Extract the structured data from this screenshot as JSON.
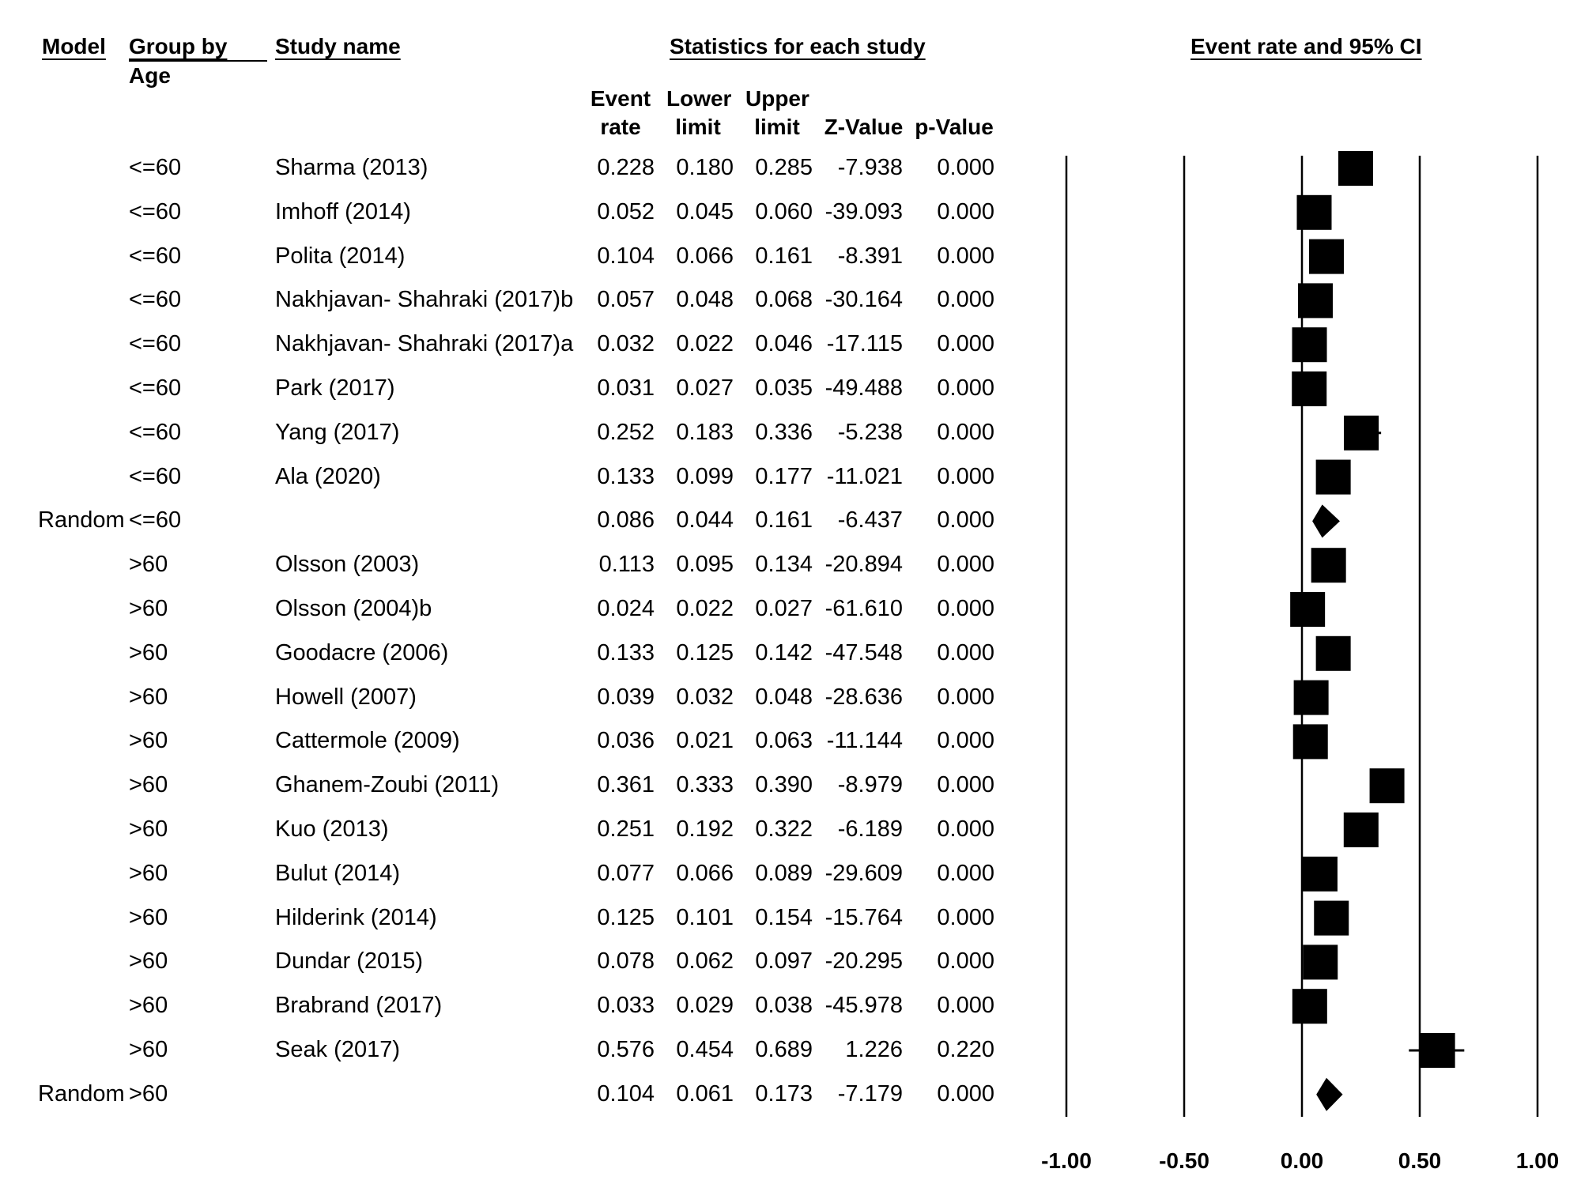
{
  "headers": {
    "model": "Model",
    "group_by_line1": "Group by",
    "group_by_line2": "Age",
    "study_name": "Study name",
    "statistics": "Statistics for each study",
    "event_rate_line1": "Event",
    "event_rate_line2": "rate",
    "lower_line1": "Lower",
    "lower_line2": "limit",
    "upper_line1": "Upper",
    "upper_line2": "limit",
    "z_value": "Z-Value",
    "p_value": "p-Value",
    "plot_title": "Event rate and 95% CI"
  },
  "rows": [
    {
      "model": "",
      "group": "<=60",
      "study": "Sharma (2013)",
      "er": "0.228",
      "ll": "0.180",
      "ul": "0.285",
      "z": "-7.938",
      "p": "0.000"
    },
    {
      "model": "",
      "group": "<=60",
      "study": "Imhoff (2014)",
      "er": "0.052",
      "ll": "0.045",
      "ul": "0.060",
      "z": "-39.093",
      "p": "0.000"
    },
    {
      "model": "",
      "group": "<=60",
      "study": "Polita (2014)",
      "er": "0.104",
      "ll": "0.066",
      "ul": "0.161",
      "z": "-8.391",
      "p": "0.000"
    },
    {
      "model": "",
      "group": "<=60",
      "study": "Nakhjavan- Shahraki (2017)b",
      "er": "0.057",
      "ll": "0.048",
      "ul": "0.068",
      "z": "-30.164",
      "p": "0.000"
    },
    {
      "model": "",
      "group": "<=60",
      "study": "Nakhjavan- Shahraki (2017)a",
      "er": "0.032",
      "ll": "0.022",
      "ul": "0.046",
      "z": "-17.115",
      "p": "0.000"
    },
    {
      "model": "",
      "group": "<=60",
      "study": "Park (2017)",
      "er": "0.031",
      "ll": "0.027",
      "ul": "0.035",
      "z": "-49.488",
      "p": "0.000"
    },
    {
      "model": "",
      "group": "<=60",
      "study": "Yang (2017)",
      "er": "0.252",
      "ll": "0.183",
      "ul": "0.336",
      "z": "-5.238",
      "p": "0.000"
    },
    {
      "model": "",
      "group": "<=60",
      "study": "Ala (2020)",
      "er": "0.133",
      "ll": "0.099",
      "ul": "0.177",
      "z": "-11.021",
      "p": "0.000"
    },
    {
      "model": "Random",
      "group": "<=60",
      "study": "",
      "er": "0.086",
      "ll": "0.044",
      "ul": "0.161",
      "z": "-6.437",
      "p": "0.000"
    },
    {
      "model": "",
      "group": ">60",
      "study": "Olsson (2003)",
      "er": "0.113",
      "ll": "0.095",
      "ul": "0.134",
      "z": "-20.894",
      "p": "0.000"
    },
    {
      "model": "",
      "group": ">60",
      "study": "Olsson (2004)b",
      "er": "0.024",
      "ll": "0.022",
      "ul": "0.027",
      "z": "-61.610",
      "p": "0.000"
    },
    {
      "model": "",
      "group": ">60",
      "study": "Goodacre (2006)",
      "er": "0.133",
      "ll": "0.125",
      "ul": "0.142",
      "z": "-47.548",
      "p": "0.000"
    },
    {
      "model": "",
      "group": ">60",
      "study": "Howell (2007)",
      "er": "0.039",
      "ll": "0.032",
      "ul": "0.048",
      "z": "-28.636",
      "p": "0.000"
    },
    {
      "model": "",
      "group": ">60",
      "study": "Cattermole (2009)",
      "er": "0.036",
      "ll": "0.021",
      "ul": "0.063",
      "z": "-11.144",
      "p": "0.000"
    },
    {
      "model": "",
      "group": ">60",
      "study": "Ghanem-Zoubi (2011)",
      "er": "0.361",
      "ll": "0.333",
      "ul": "0.390",
      "z": "-8.979",
      "p": "0.000"
    },
    {
      "model": "",
      "group": ">60",
      "study": "Kuo (2013)",
      "er": "0.251",
      "ll": "0.192",
      "ul": "0.322",
      "z": "-6.189",
      "p": "0.000"
    },
    {
      "model": "",
      "group": ">60",
      "study": "Bulut (2014)",
      "er": "0.077",
      "ll": "0.066",
      "ul": "0.089",
      "z": "-29.609",
      "p": "0.000"
    },
    {
      "model": "",
      "group": ">60",
      "study": "Hilderink (2014)",
      "er": "0.125",
      "ll": "0.101",
      "ul": "0.154",
      "z": "-15.764",
      "p": "0.000"
    },
    {
      "model": "",
      "group": ">60",
      "study": "Dundar (2015)",
      "er": "0.078",
      "ll": "0.062",
      "ul": "0.097",
      "z": "-20.295",
      "p": "0.000"
    },
    {
      "model": "",
      "group": ">60",
      "study": "Brabrand (2017)",
      "er": "0.033",
      "ll": "0.029",
      "ul": "0.038",
      "z": "-45.978",
      "p": "0.000"
    },
    {
      "model": "",
      "group": ">60",
      "study": "Seak (2017)",
      "er": "0.576",
      "ll": "0.454",
      "ul": "0.689",
      "z": "1.226",
      "p": "0.220"
    },
    {
      "model": "Random",
      "group": ">60",
      "study": "",
      "er": "0.104",
      "ll": "0.061",
      "ul": "0.173",
      "z": "-7.179",
      "p": "0.000"
    }
  ],
  "chart_data": {
    "type": "forest",
    "title": "Event rate and 95% CI",
    "x_ticks": [
      "-1.00",
      "-0.50",
      "0.00",
      "0.50",
      "1.00"
    ],
    "xlim": [
      -1,
      1
    ],
    "series": [
      {
        "label": "Sharma (2013)",
        "est": 0.228,
        "lo": 0.18,
        "hi": 0.285,
        "kind": "study"
      },
      {
        "label": "Imhoff (2014)",
        "est": 0.052,
        "lo": 0.045,
        "hi": 0.06,
        "kind": "study"
      },
      {
        "label": "Polita (2014)",
        "est": 0.104,
        "lo": 0.066,
        "hi": 0.161,
        "kind": "study"
      },
      {
        "label": "Nakhjavan- Shahraki (2017)b",
        "est": 0.057,
        "lo": 0.048,
        "hi": 0.068,
        "kind": "study"
      },
      {
        "label": "Nakhjavan- Shahraki (2017)a",
        "est": 0.032,
        "lo": 0.022,
        "hi": 0.046,
        "kind": "study"
      },
      {
        "label": "Park (2017)",
        "est": 0.031,
        "lo": 0.027,
        "hi": 0.035,
        "kind": "study"
      },
      {
        "label": "Yang (2017)",
        "est": 0.252,
        "lo": 0.183,
        "hi": 0.336,
        "kind": "study"
      },
      {
        "label": "Ala (2020)",
        "est": 0.133,
        "lo": 0.099,
        "hi": 0.177,
        "kind": "study"
      },
      {
        "label": "Random <=60",
        "est": 0.086,
        "lo": 0.044,
        "hi": 0.161,
        "kind": "summary"
      },
      {
        "label": "Olsson (2003)",
        "est": 0.113,
        "lo": 0.095,
        "hi": 0.134,
        "kind": "study"
      },
      {
        "label": "Olsson (2004)b",
        "est": 0.024,
        "lo": 0.022,
        "hi": 0.027,
        "kind": "study"
      },
      {
        "label": "Goodacre (2006)",
        "est": 0.133,
        "lo": 0.125,
        "hi": 0.142,
        "kind": "study"
      },
      {
        "label": "Howell (2007)",
        "est": 0.039,
        "lo": 0.032,
        "hi": 0.048,
        "kind": "study"
      },
      {
        "label": "Cattermole (2009)",
        "est": 0.036,
        "lo": 0.021,
        "hi": 0.063,
        "kind": "study"
      },
      {
        "label": "Ghanem-Zoubi (2011)",
        "est": 0.361,
        "lo": 0.333,
        "hi": 0.39,
        "kind": "study"
      },
      {
        "label": "Kuo (2013)",
        "est": 0.251,
        "lo": 0.192,
        "hi": 0.322,
        "kind": "study"
      },
      {
        "label": "Bulut (2014)",
        "est": 0.077,
        "lo": 0.066,
        "hi": 0.089,
        "kind": "study"
      },
      {
        "label": "Hilderink (2014)",
        "est": 0.125,
        "lo": 0.101,
        "hi": 0.154,
        "kind": "study"
      },
      {
        "label": "Dundar (2015)",
        "est": 0.078,
        "lo": 0.062,
        "hi": 0.097,
        "kind": "study"
      },
      {
        "label": "Brabrand (2017)",
        "est": 0.033,
        "lo": 0.029,
        "hi": 0.038,
        "kind": "study"
      },
      {
        "label": "Seak (2017)",
        "est": 0.576,
        "lo": 0.454,
        "hi": 0.689,
        "kind": "study"
      },
      {
        "label": "Random >60",
        "est": 0.104,
        "lo": 0.061,
        "hi": 0.173,
        "kind": "summary"
      }
    ],
    "grid": true,
    "colors": {
      "marks": "#000000",
      "background": "#ffffff"
    }
  }
}
